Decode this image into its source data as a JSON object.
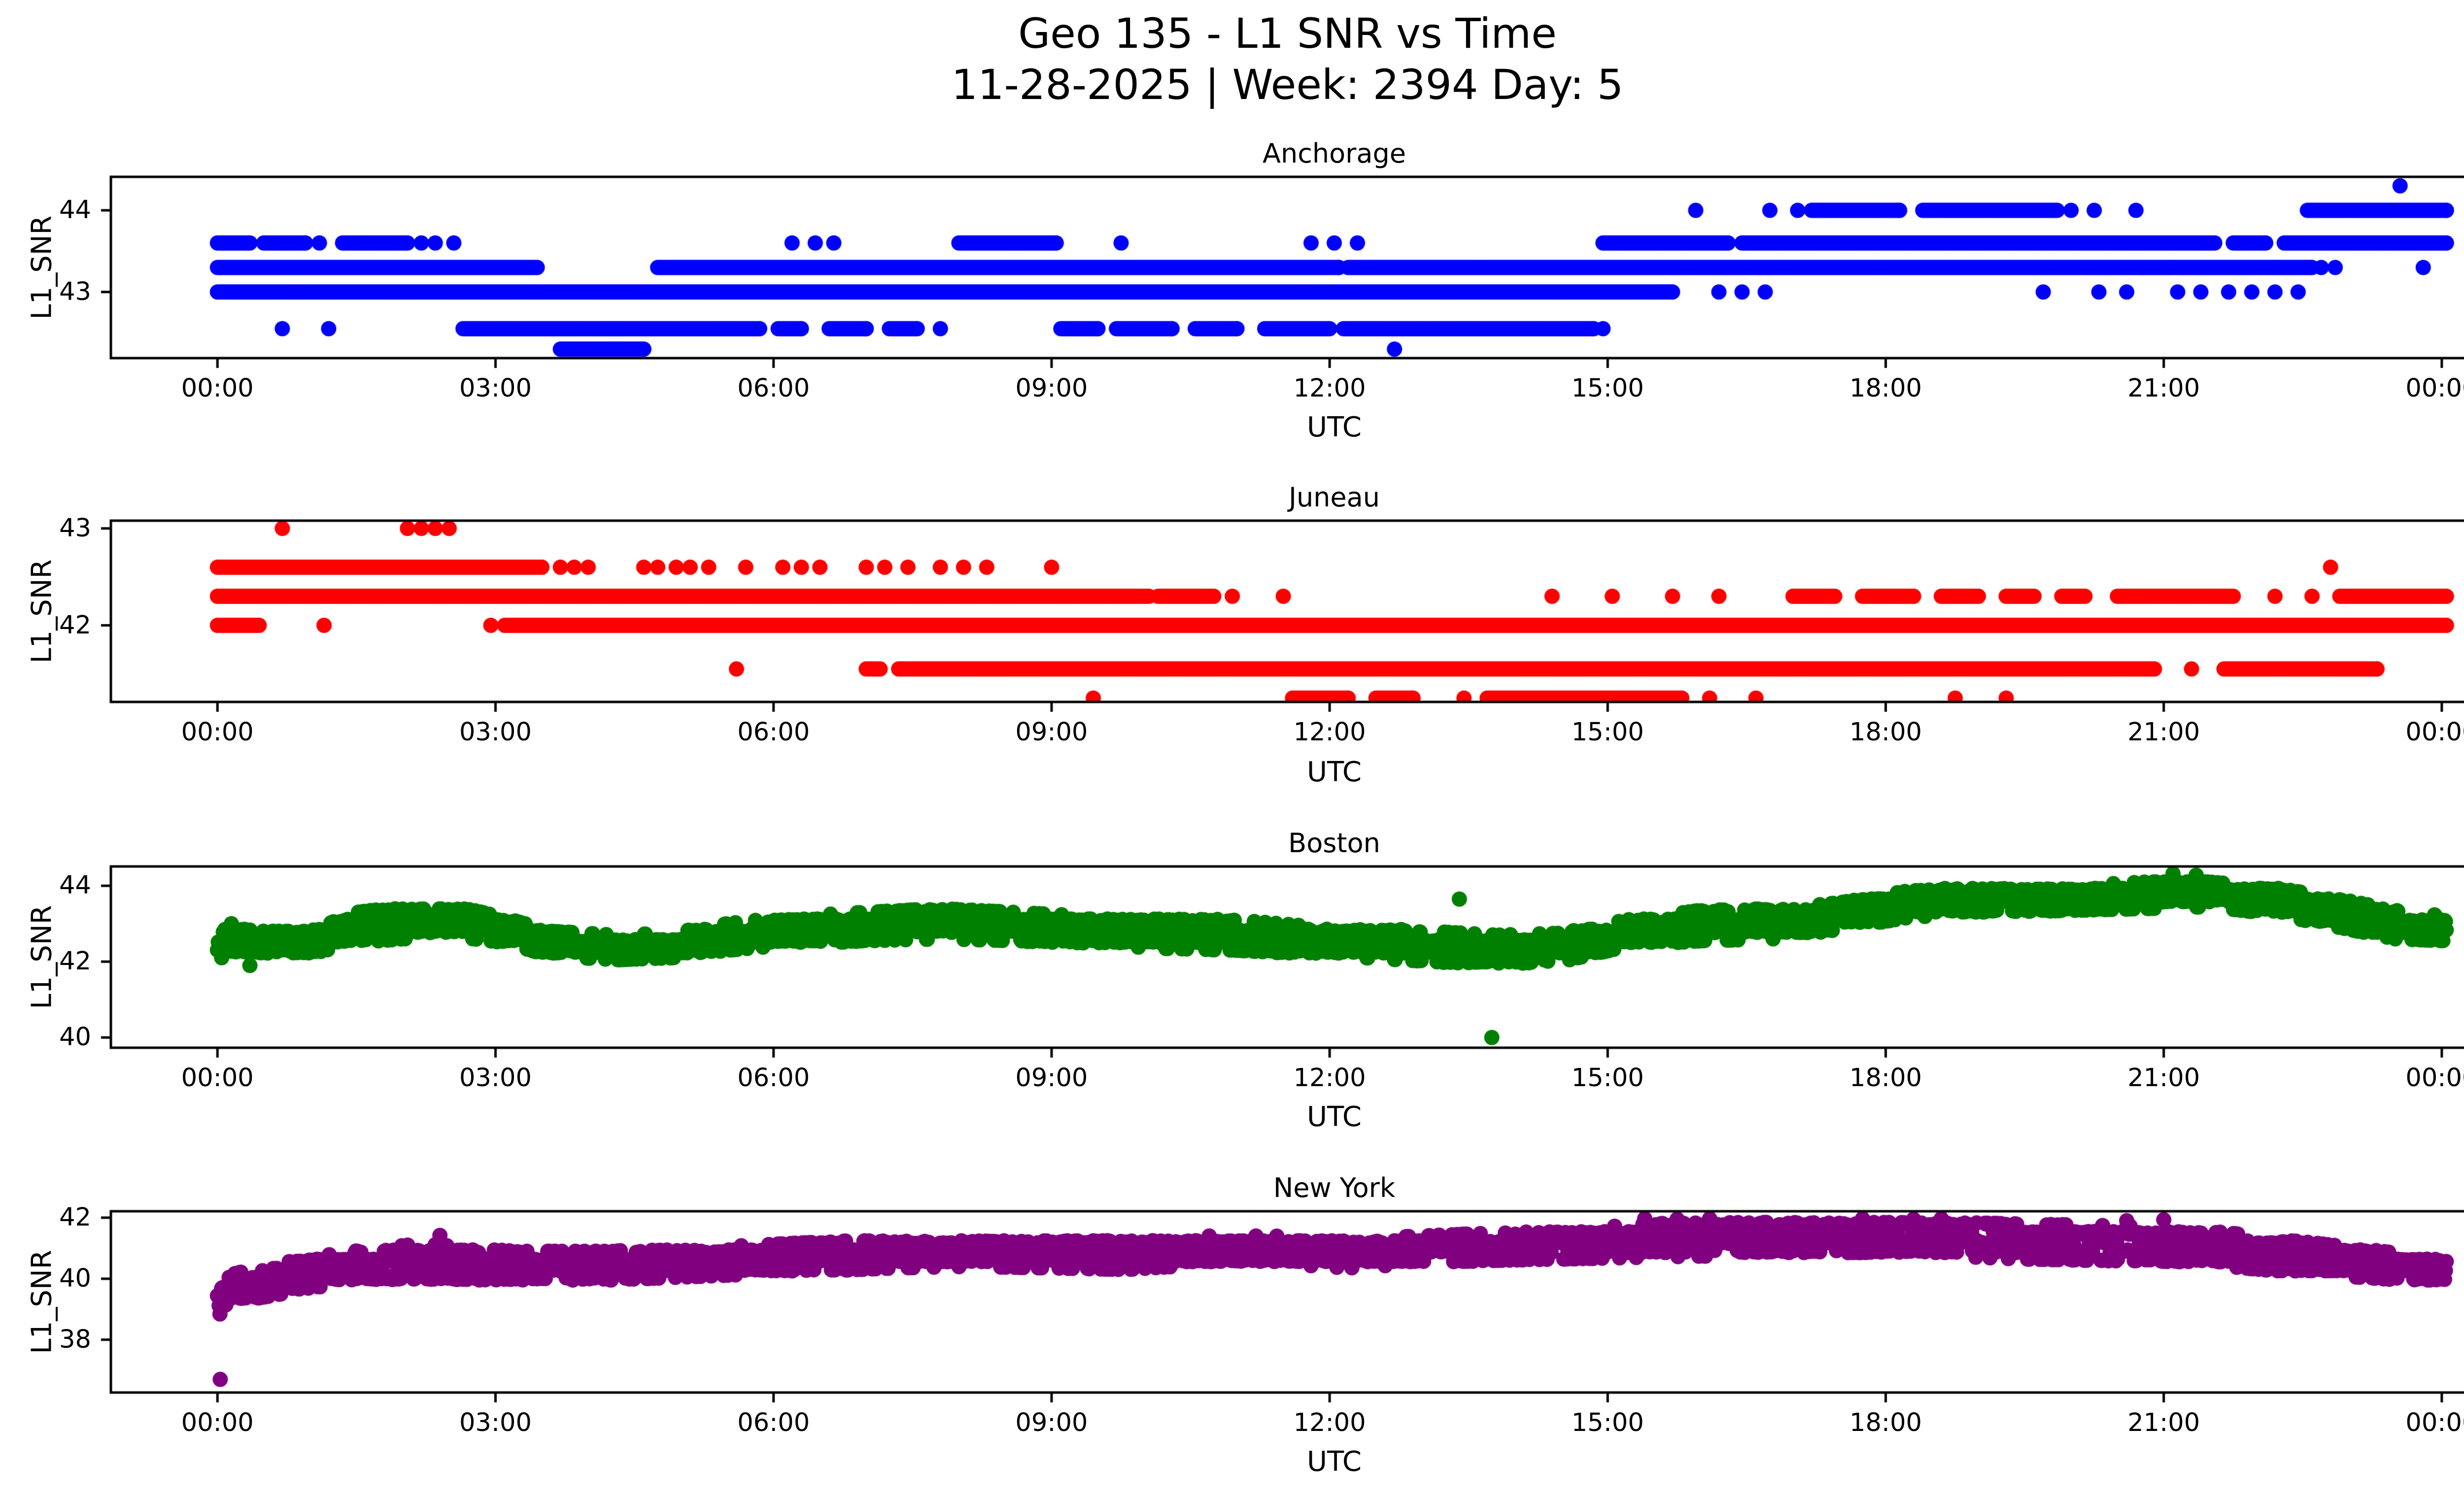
{
  "figure": {
    "title_line1": "Geo 135 - L1 SNR vs Time",
    "title_line2": "11-28-2025 | Week: 2394 Day: 5",
    "background_color": "#ffffff",
    "text_color": "#000000"
  },
  "axis": {
    "xlabel": "UTC",
    "ylabel": "L1_SNR",
    "xtick_hours": [
      0,
      3,
      6,
      9,
      12,
      15,
      18,
      21,
      24
    ],
    "xticklabels": [
      "00:00",
      "03:00",
      "06:00",
      "09:00",
      "12:00",
      "15:00",
      "18:00",
      "21:00",
      "00:00"
    ],
    "xlim_hours": [
      -1.15,
      25.25
    ],
    "grid": false,
    "legend": "none"
  },
  "chart_data": [
    {
      "type": "scatter",
      "station": "Anchorage",
      "color": "#0000ff",
      "marker": "circle",
      "ylabel": "L1_SNR",
      "xlabel": "UTC",
      "yticks": [
        44,
        43
      ],
      "ylim": [
        42.19,
        44.41
      ],
      "levels": [
        {
          "snr": 44.3,
          "dots": [
            23.55
          ],
          "solid": []
        },
        {
          "snr": 44.0,
          "dots": [
            15.95,
            16.75,
            17.05,
            20.0,
            20.25,
            20.7
          ],
          "solid": [
            [
              17.2,
              18.15
            ],
            [
              18.4,
              19.85
            ],
            [
              22.55,
              24.05
            ]
          ]
        },
        {
          "snr": 43.6,
          "dots": [
            1.1,
            2.2,
            2.35,
            2.55,
            6.2,
            6.45,
            6.65,
            9.75,
            11.8,
            12.05,
            12.3
          ],
          "solid": [
            [
              0.0,
              0.35
            ],
            [
              0.5,
              0.95
            ],
            [
              1.35,
              2.05
            ],
            [
              8.0,
              9.05
            ],
            [
              14.95,
              16.3
            ],
            [
              16.45,
              21.55
            ],
            [
              21.75,
              22.1
            ],
            [
              22.3,
              24.05
            ]
          ]
        },
        {
          "snr": 43.3,
          "dots": [
            22.7,
            22.85,
            23.8
          ],
          "solid": [
            [
              0.0,
              3.45
            ],
            [
              4.75,
              12.1
            ],
            [
              12.2,
              22.6
            ]
          ]
        },
        {
          "snr": 43.0,
          "dots": [
            16.2,
            16.45,
            16.7,
            19.7,
            20.3,
            20.6,
            21.15,
            21.4,
            21.7,
            21.95,
            22.2,
            22.45
          ],
          "solid": [
            [
              0.0,
              15.7
            ]
          ]
        },
        {
          "snr": 42.55,
          "dots": [
            0.7,
            1.2,
            7.8,
            14.95
          ],
          "solid": [
            [
              2.65,
              5.85
            ],
            [
              6.05,
              6.3
            ],
            [
              6.6,
              7.0
            ],
            [
              7.25,
              7.55
            ],
            [
              9.1,
              9.5
            ],
            [
              9.7,
              10.3
            ],
            [
              10.55,
              11.0
            ],
            [
              11.3,
              12.0
            ],
            [
              12.15,
              14.85
            ]
          ]
        },
        {
          "snr": 42.3,
          "dots": [
            12.7
          ],
          "solid": [
            [
              3.7,
              4.6
            ]
          ]
        }
      ]
    },
    {
      "type": "scatter",
      "station": "Juneau",
      "color": "#ff0000",
      "marker": "circle",
      "ylabel": "L1_SNR",
      "xlabel": "UTC",
      "yticks": [
        43,
        42
      ],
      "ylim": [
        41.21,
        43.08
      ],
      "levels": [
        {
          "snr": 43.0,
          "dots": [
            0.7,
            2.05,
            2.2,
            2.35,
            2.5
          ],
          "solid": []
        },
        {
          "snr": 42.6,
          "dots": [
            3.7,
            3.85,
            4.0,
            4.6,
            4.75,
            4.95,
            5.1,
            5.3,
            5.7,
            6.1,
            6.3,
            6.5,
            7.0,
            7.2,
            7.45,
            7.8,
            8.05,
            8.3,
            9.0,
            22.8
          ],
          "solid": [
            [
              0.0,
              3.5
            ]
          ]
        },
        {
          "snr": 42.3,
          "dots": [
            10.95,
            11.5,
            14.4,
            15.05,
            15.7,
            16.2,
            22.2,
            22.6
          ],
          "solid": [
            [
              0.0,
              10.05
            ],
            [
              10.15,
              10.75
            ],
            [
              17.0,
              17.45
            ],
            [
              17.75,
              18.3
            ],
            [
              18.6,
              19.0
            ],
            [
              19.3,
              19.6
            ],
            [
              19.9,
              20.15
            ],
            [
              20.5,
              21.75
            ],
            [
              22.9,
              24.05
            ]
          ]
        },
        {
          "snr": 42.0,
          "dots": [
            1.15,
            2.95
          ],
          "solid": [
            [
              0.0,
              0.45
            ],
            [
              3.1,
              24.05
            ]
          ]
        },
        {
          "snr": 41.55,
          "dots": [
            5.6,
            21.3
          ],
          "solid": [
            [
              7.0,
              7.15
            ],
            [
              7.35,
              20.9
            ],
            [
              21.65,
              23.3
            ]
          ]
        },
        {
          "snr": 41.25,
          "dots": [
            9.45,
            13.45,
            16.1,
            16.6,
            18.75,
            19.3
          ],
          "solid": [
            [
              11.6,
              12.2
            ],
            [
              12.5,
              12.9
            ],
            [
              13.7,
              15.8
            ]
          ]
        }
      ]
    },
    {
      "type": "scatter",
      "station": "Boston",
      "color": "#008000",
      "marker": "circle",
      "ylabel": "L1_SNR",
      "xlabel": "UTC",
      "yticks": [
        44,
        42,
        40
      ],
      "ylim": [
        39.73,
        44.51
      ],
      "quantize": {
        "base": 42.0,
        "step": 0.27
      },
      "band": [
        [
          0,
          42.1,
          42.95
        ],
        [
          0.5,
          42.15,
          42.8
        ],
        [
          1.0,
          42.2,
          42.8
        ],
        [
          1.5,
          42.5,
          43.3
        ],
        [
          2.0,
          42.6,
          43.45
        ],
        [
          2.6,
          42.65,
          43.45
        ],
        [
          3.1,
          42.5,
          43.15
        ],
        [
          3.6,
          42.15,
          42.8
        ],
        [
          4.3,
          42.05,
          42.7
        ],
        [
          4.9,
          42.1,
          42.75
        ],
        [
          5.5,
          42.3,
          43.0
        ],
        [
          6.2,
          42.45,
          43.2
        ],
        [
          7.0,
          42.55,
          43.3
        ],
        [
          7.8,
          42.6,
          43.4
        ],
        [
          8.6,
          42.55,
          43.3
        ],
        [
          9.4,
          42.45,
          43.2
        ],
        [
          10.2,
          42.35,
          43.15
        ],
        [
          11.0,
          42.3,
          43.1
        ],
        [
          11.7,
          42.2,
          42.95
        ],
        [
          12.4,
          42.1,
          42.9
        ],
        [
          13.1,
          42.0,
          42.8
        ],
        [
          13.8,
          41.9,
          42.7
        ],
        [
          14.5,
          42.0,
          42.75
        ],
        [
          15.2,
          42.4,
          43.1
        ],
        [
          16.0,
          42.55,
          43.35
        ],
        [
          16.8,
          42.6,
          43.4
        ],
        [
          17.5,
          42.85,
          43.55
        ],
        [
          18.2,
          43.15,
          43.85
        ],
        [
          19.0,
          43.3,
          44.0
        ],
        [
          20.0,
          43.35,
          44.0
        ],
        [
          20.8,
          43.4,
          44.1
        ],
        [
          21.5,
          43.45,
          44.1
        ],
        [
          22.2,
          43.25,
          43.95
        ],
        [
          22.9,
          42.9,
          43.65
        ],
        [
          23.5,
          42.6,
          43.35
        ],
        [
          24.05,
          42.55,
          43.2
        ]
      ],
      "outlier_dots": [
        [
          0.15,
          43.0
        ],
        [
          0.35,
          41.9
        ],
        [
          13.4,
          43.65
        ],
        [
          13.75,
          40.0
        ],
        [
          21.1,
          44.32
        ],
        [
          21.35,
          44.28
        ]
      ]
    },
    {
      "type": "scatter",
      "station": "New York",
      "color": "#800080",
      "marker": "circle",
      "ylabel": "L1_SNR",
      "xlabel": "UTC",
      "yticks": [
        42,
        40,
        38
      ],
      "ylim": [
        36.27,
        42.21
      ],
      "quantize": {
        "base": 40.0,
        "step": 0.3
      },
      "band": [
        [
          0.0,
          38.55,
          40.0
        ],
        [
          0.1,
          39.0,
          40.1
        ],
        [
          0.3,
          39.3,
          40.25
        ],
        [
          0.6,
          39.45,
          40.45
        ],
        [
          1.0,
          39.7,
          40.7
        ],
        [
          1.6,
          39.9,
          40.95
        ],
        [
          2.2,
          40.0,
          41.15
        ],
        [
          2.8,
          39.9,
          41.0
        ],
        [
          3.5,
          39.85,
          40.9
        ],
        [
          4.2,
          39.95,
          40.9
        ],
        [
          5.0,
          40.05,
          41.0
        ],
        [
          5.8,
          40.15,
          41.1
        ],
        [
          6.5,
          40.25,
          41.2
        ],
        [
          7.3,
          40.35,
          41.3
        ],
        [
          8.1,
          40.4,
          41.35
        ],
        [
          9.0,
          40.35,
          41.3
        ],
        [
          9.8,
          40.3,
          41.3
        ],
        [
          10.6,
          40.45,
          41.4
        ],
        [
          11.4,
          40.5,
          41.4
        ],
        [
          12.2,
          40.35,
          41.3
        ],
        [
          13.0,
          40.5,
          41.4
        ],
        [
          13.8,
          40.6,
          41.5
        ],
        [
          14.6,
          40.65,
          41.6
        ],
        [
          15.4,
          40.7,
          41.8
        ],
        [
          16.2,
          40.75,
          41.85
        ],
        [
          17.0,
          40.8,
          41.9
        ],
        [
          17.8,
          40.8,
          41.9
        ],
        [
          18.6,
          40.75,
          41.85
        ],
        [
          19.4,
          40.65,
          41.8
        ],
        [
          20.2,
          40.6,
          41.75
        ],
        [
          21.0,
          40.55,
          41.7
        ],
        [
          21.7,
          40.4,
          41.5
        ],
        [
          22.4,
          40.2,
          41.25
        ],
        [
          23.1,
          40.05,
          41.0
        ],
        [
          23.6,
          39.95,
          40.8
        ],
        [
          24.05,
          39.9,
          40.65
        ]
      ],
      "outlier_dots": [
        [
          0.03,
          36.7
        ],
        [
          2.4,
          41.42
        ],
        [
          15.4,
          41.97
        ],
        [
          15.75,
          41.95
        ],
        [
          16.1,
          41.97
        ],
        [
          17.75,
          41.97
        ],
        [
          18.3,
          41.95
        ],
        [
          18.6,
          41.97
        ],
        [
          20.6,
          41.9
        ],
        [
          21.0,
          41.93
        ]
      ]
    }
  ]
}
